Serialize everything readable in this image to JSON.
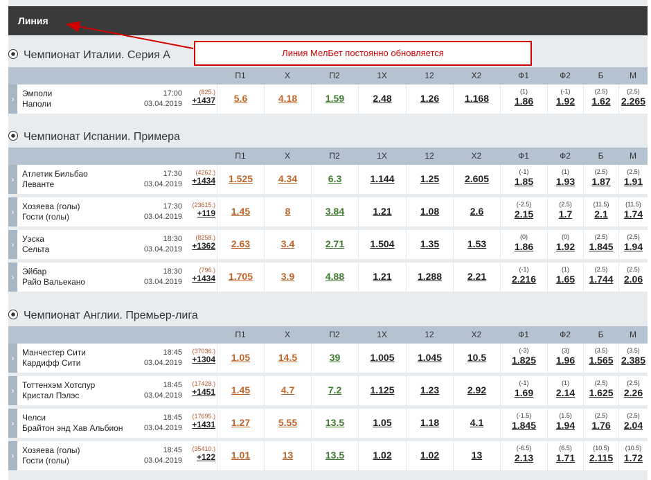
{
  "header": {
    "title": "Линия"
  },
  "annotation": {
    "text": "Линия МелБет постоянно обновляется",
    "color": "#d40000"
  },
  "colors": {
    "home_odd": "#c0652a",
    "away_odd": "#3c7a2e",
    "header_bg": "#3a3a3a",
    "col_header_bg": "#b5c3d0"
  },
  "columns": [
    "П1",
    "Х",
    "П2",
    "1Х",
    "12",
    "Х2",
    "Ф1",
    "Ф2",
    "Б",
    "М"
  ],
  "leagues": [
    {
      "name": "Чемпионат Италии. Серия А",
      "icon": "soccer-ball-icon",
      "matches": [
        {
          "home": "Эмполи",
          "away": "Наполи",
          "time": "17:00",
          "date": "03.04.2019",
          "market_id": "(825.)",
          "more": "+1437",
          "odds": [
            "5.6",
            "4.18",
            "1.59",
            "2.48",
            "1.26",
            "1.168"
          ],
          "f1": [
            "(1)",
            "1.86"
          ],
          "f2": [
            "(-1)",
            "1.92"
          ],
          "b": [
            "(2.5)",
            "1.62"
          ],
          "m": [
            "(2.5)",
            "2.265"
          ]
        }
      ]
    },
    {
      "name": "Чемпионат Испании. Примера",
      "icon": "soccer-ball-icon",
      "matches": [
        {
          "home": "Атлетик Бильбао",
          "away": "Леванте",
          "time": "17:30",
          "date": "03.04.2019",
          "market_id": "(4262.)",
          "more": "+1434",
          "odds": [
            "1.525",
            "4.34",
            "6.3",
            "1.144",
            "1.25",
            "2.605"
          ],
          "f1": [
            "(-1)",
            "1.85"
          ],
          "f2": [
            "(1)",
            "1.93"
          ],
          "b": [
            "(2.5)",
            "1.87"
          ],
          "m": [
            "(2.5)",
            "1.91"
          ]
        },
        {
          "home": "Хозяева (голы)",
          "away": "Гости (голы)",
          "time": "17:30",
          "date": "03.04.2019",
          "market_id": "(23615.)",
          "more": "+119",
          "odds": [
            "1.45",
            "8",
            "3.84",
            "1.21",
            "1.08",
            "2.6"
          ],
          "f1": [
            "(-2.5)",
            "2.15"
          ],
          "f2": [
            "(2.5)",
            "1.7"
          ],
          "b": [
            "(11.5)",
            "2.1"
          ],
          "m": [
            "(11.5)",
            "1.74"
          ]
        },
        {
          "home": "Уэска",
          "away": "Сельта",
          "time": "18:30",
          "date": "03.04.2019",
          "market_id": "(8258.)",
          "more": "+1362",
          "odds": [
            "2.63",
            "3.4",
            "2.71",
            "1.504",
            "1.35",
            "1.53"
          ],
          "f1": [
            "(0)",
            "1.86"
          ],
          "f2": [
            "(0)",
            "1.92"
          ],
          "b": [
            "(2.5)",
            "1.845"
          ],
          "m": [
            "(2.5)",
            "1.94"
          ]
        },
        {
          "home": "Эйбар",
          "away": "Райо Вальекано",
          "time": "18:30",
          "date": "03.04.2019",
          "market_id": "(796.)",
          "more": "+1434",
          "odds": [
            "1.705",
            "3.9",
            "4.88",
            "1.21",
            "1.288",
            "2.21"
          ],
          "f1": [
            "(-1)",
            "2.216"
          ],
          "f2": [
            "(1)",
            "1.65"
          ],
          "b": [
            "(2.5)",
            "1.744"
          ],
          "m": [
            "(2.5)",
            "2.06"
          ]
        }
      ]
    },
    {
      "name": "Чемпионат Англии. Премьер-лига",
      "icon": "soccer-ball-icon",
      "matches": [
        {
          "home": "Манчестер Сити",
          "away": "Кардифф Сити",
          "time": "18:45",
          "date": "03.04.2019",
          "market_id": "(37036.)",
          "more": "+1304",
          "odds": [
            "1.05",
            "14.5",
            "39",
            "1.005",
            "1.045",
            "10.5"
          ],
          "f1": [
            "(-3)",
            "1.825"
          ],
          "f2": [
            "(3)",
            "1.96"
          ],
          "b": [
            "(3.5)",
            "1.565"
          ],
          "m": [
            "(3.5)",
            "2.385"
          ]
        },
        {
          "home": "Тоттенхэм Хотспур",
          "away": "Кристал Пэлэс",
          "time": "18:45",
          "date": "03.04.2019",
          "market_id": "(17428.)",
          "more": "+1451",
          "odds": [
            "1.45",
            "4.7",
            "7.2",
            "1.125",
            "1.23",
            "2.92"
          ],
          "f1": [
            "(-1)",
            "1.69"
          ],
          "f2": [
            "(1)",
            "2.14"
          ],
          "b": [
            "(2.5)",
            "1.625"
          ],
          "m": [
            "(2.5)",
            "2.26"
          ]
        },
        {
          "home": "Челси",
          "away": "Брайтон энд Хав Альбион",
          "time": "18:45",
          "date": "03.04.2019",
          "market_id": "(17695.)",
          "more": "+1431",
          "odds": [
            "1.27",
            "5.55",
            "13.5",
            "1.05",
            "1.18",
            "4.1"
          ],
          "f1": [
            "(-1.5)",
            "1.845"
          ],
          "f2": [
            "(1.5)",
            "1.94"
          ],
          "b": [
            "(2.5)",
            "1.76"
          ],
          "m": [
            "(2.5)",
            "2.04"
          ]
        },
        {
          "home": "Хозяева (голы)",
          "away": "Гости (голы)",
          "time": "18:45",
          "date": "03.04.2019",
          "market_id": "(35410.)",
          "more": "+122",
          "odds": [
            "1.01",
            "13",
            "13.5",
            "1.02",
            "1.02",
            "13"
          ],
          "f1": [
            "(-6.5)",
            "2.13"
          ],
          "f2": [
            "(6.5)",
            "1.71"
          ],
          "b": [
            "(10.5)",
            "2.115"
          ],
          "m": [
            "(10.5)",
            "1.72"
          ]
        }
      ]
    }
  ]
}
